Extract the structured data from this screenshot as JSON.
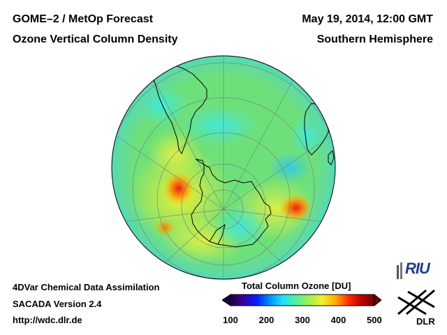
{
  "header": {
    "title_left": "GOME–2 / MetOp Forecast",
    "subtitle_left": "Ozone Vertical Column Density",
    "date": "May 19, 2014, 12:00 GMT",
    "region": "Southern Hemisphere"
  },
  "footer": {
    "line1": "4DVar Chemical Data Assimilation",
    "line2": "SACADA Version 2.4",
    "line3": "http://wdc.dlr.de"
  },
  "colorbar": {
    "title": "Total Column Ozone [DU]",
    "ticks": [
      "100",
      "200",
      "300",
      "400",
      "500"
    ],
    "min": 100,
    "max": 500,
    "colors": [
      "#1a0040",
      "#3a00a0",
      "#0020ff",
      "#0090ff",
      "#20e0ff",
      "#50f0a0",
      "#a0f050",
      "#f0f030",
      "#ffb000",
      "#ff3000",
      "#c00000",
      "#700000"
    ]
  },
  "logos": {
    "riu": "RIU",
    "dlr": "DLR"
  },
  "colors": {
    "background": "#ffffff",
    "map_base": "#6ee07a",
    "coastline": "#000000"
  }
}
